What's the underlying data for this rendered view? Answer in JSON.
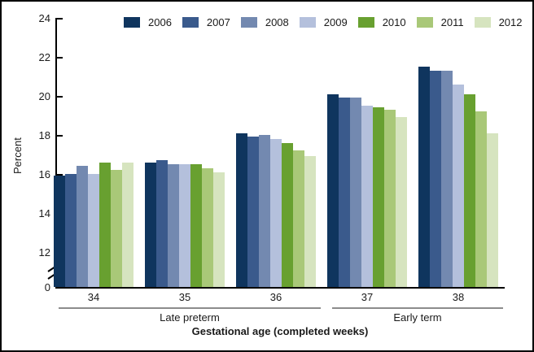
{
  "chart_data": {
    "type": "bar",
    "title": "",
    "ylabel": "Percent",
    "xlabel": "Gestational age (completed weeks)",
    "categories": [
      "34",
      "35",
      "36",
      "37",
      "38"
    ],
    "series": [
      {
        "name": "2006",
        "color": "#0f355e",
        "values": [
          15.9,
          16.6,
          18.1,
          20.1,
          21.5
        ]
      },
      {
        "name": "2007",
        "color": "#3a5a8c",
        "values": [
          16.0,
          16.7,
          17.9,
          19.9,
          21.3
        ]
      },
      {
        "name": "2008",
        "color": "#7389b0",
        "values": [
          16.4,
          16.5,
          18.0,
          19.9,
          21.3
        ]
      },
      {
        "name": "2009",
        "color": "#b4c0dc",
        "values": [
          16.0,
          16.5,
          17.8,
          19.5,
          20.6
        ]
      },
      {
        "name": "2010",
        "color": "#68a030",
        "values": [
          16.6,
          16.5,
          17.6,
          19.4,
          20.1
        ]
      },
      {
        "name": "2011",
        "color": "#a9c878",
        "values": [
          16.2,
          16.3,
          17.2,
          19.3,
          19.2
        ]
      },
      {
        "name": "2012",
        "color": "#d6e4bf",
        "values": [
          16.6,
          16.1,
          16.9,
          18.9,
          18.1
        ]
      }
    ],
    "y_ticks": [
      24,
      22,
      20,
      18,
      16,
      14,
      12,
      0
    ],
    "axis_break_between": [
      0,
      12
    ],
    "category_groups": [
      {
        "label": "Late preterm",
        "categories": [
          "34",
          "35",
          "36"
        ]
      },
      {
        "label": "Early term",
        "categories": [
          "37",
          "38"
        ]
      }
    ],
    "legend_position": "top",
    "grid": "off"
  }
}
